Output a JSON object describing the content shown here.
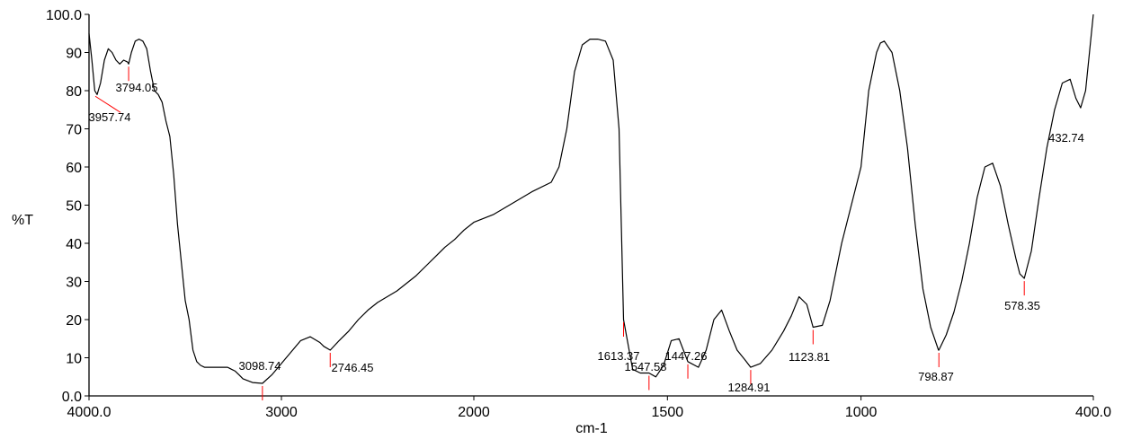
{
  "chart_data": {
    "type": "line",
    "xlabel": "cm-1",
    "ylabel": "%T",
    "xlim": [
      4000.0,
      400.0
    ],
    "ylim": [
      0.0,
      100.0
    ],
    "x_ticks": [
      4000.0,
      3000,
      2000,
      1500,
      1000,
      400.0
    ],
    "x_tick_labels": [
      "4000.0",
      "3000",
      "2000",
      "1500",
      "1000",
      "400.0"
    ],
    "y_ticks": [
      0,
      10,
      20,
      30,
      40,
      50,
      60,
      70,
      80,
      90,
      100
    ],
    "y_tick_labels": [
      "0.0",
      "10",
      "20",
      "30",
      "40",
      "50",
      "60",
      "70",
      "80",
      "90",
      "100.0"
    ],
    "grid": false,
    "colors": {
      "line": "#000000",
      "marker": "#ff0000",
      "axis": "#000000"
    },
    "series": [
      {
        "x": [
          4000,
          3985,
          3970,
          3957.74,
          3940,
          3920,
          3900,
          3880,
          3860,
          3840,
          3820,
          3800,
          3794.05,
          3780,
          3760,
          3740,
          3720,
          3700,
          3680,
          3660,
          3640,
          3620,
          3600,
          3580,
          3560,
          3540,
          3520,
          3500,
          3480,
          3460,
          3440,
          3420,
          3400,
          3380,
          3360,
          3340,
          3320,
          3300,
          3280,
          3260,
          3240,
          3220,
          3200,
          3150,
          3098.74,
          3050,
          3000,
          2950,
          2900,
          2850,
          2800,
          2780,
          2746.45,
          2700,
          2650,
          2600,
          2550,
          2500,
          2450,
          2400,
          2350,
          2300,
          2250,
          2200,
          2150,
          2100,
          2050,
          2000,
          1950,
          1900,
          1850,
          1800,
          1780,
          1760,
          1740,
          1720,
          1700,
          1680,
          1660,
          1640,
          1625,
          1613.37,
          1590,
          1570,
          1547.58,
          1530,
          1510,
          1490,
          1470,
          1447.26,
          1420,
          1400,
          1380,
          1360,
          1340,
          1320,
          1300,
          1284.91,
          1260,
          1230,
          1200,
          1180,
          1160,
          1140,
          1123.81,
          1100,
          1080,
          1050,
          1000,
          980,
          960,
          950,
          940,
          920,
          900,
          880,
          860,
          840,
          820,
          800,
          798.87,
          780,
          760,
          740,
          720,
          700,
          680,
          660,
          640,
          620,
          600,
          590,
          578.35,
          560,
          540,
          520,
          500,
          480,
          460,
          445,
          432.74,
          420,
          410,
          400
        ],
        "y": [
          95,
          88,
          80,
          79,
          82,
          88,
          91,
          90,
          88,
          87,
          88,
          87.5,
          87,
          90,
          93,
          93.5,
          93,
          91,
          85,
          80,
          79,
          77,
          72,
          68,
          58,
          45,
          35,
          25,
          20,
          12,
          9,
          8,
          7.5,
          7.5,
          7.5,
          7.5,
          7.5,
          7.5,
          7.5,
          7,
          6.5,
          5.5,
          4.5,
          3.5,
          3.3,
          5.5,
          8.5,
          11.5,
          14.5,
          15.5,
          14,
          13,
          12,
          14.5,
          17,
          20,
          22.5,
          24.5,
          26,
          27.5,
          29.5,
          31.5,
          34,
          36.5,
          39,
          41,
          43.5,
          45.5,
          47.5,
          50.5,
          53.5,
          56,
          60,
          70,
          85,
          92,
          93.5,
          93.5,
          93,
          88,
          70,
          20,
          7,
          6,
          6,
          5,
          8,
          14.5,
          15,
          9,
          7.5,
          12,
          20,
          22.5,
          17,
          12,
          9.5,
          7.5,
          8.5,
          12,
          17,
          21,
          26,
          24,
          18,
          18.5,
          25,
          40,
          60,
          80,
          90,
          92.5,
          93,
          90,
          80,
          65,
          45,
          28,
          18,
          12,
          12,
          16,
          22,
          30,
          40,
          52,
          60,
          61,
          55,
          45,
          36,
          32,
          30.8,
          38,
          52,
          65,
          75,
          82,
          83,
          78,
          75.5,
          80,
          90,
          100
        ]
      }
    ],
    "peaks": [
      {
        "x": 3957.74,
        "label": "3957.74"
      },
      {
        "x": 3794.05,
        "label": "3794.05"
      },
      {
        "x": 3098.74,
        "label": "3098.74"
      },
      {
        "x": 2746.45,
        "label": "2746.45"
      },
      {
        "x": 1613.37,
        "label": "1613.37"
      },
      {
        "x": 1547.58,
        "label": "1547.58"
      },
      {
        "x": 1447.26,
        "label": "1447.26"
      },
      {
        "x": 1284.91,
        "label": "1284.91"
      },
      {
        "x": 1123.81,
        "label": "1123.81"
      },
      {
        "x": 798.87,
        "label": "798.87"
      },
      {
        "x": 578.35,
        "label": "578.35"
      },
      {
        "x": 432.74,
        "label": "432.74"
      }
    ]
  }
}
